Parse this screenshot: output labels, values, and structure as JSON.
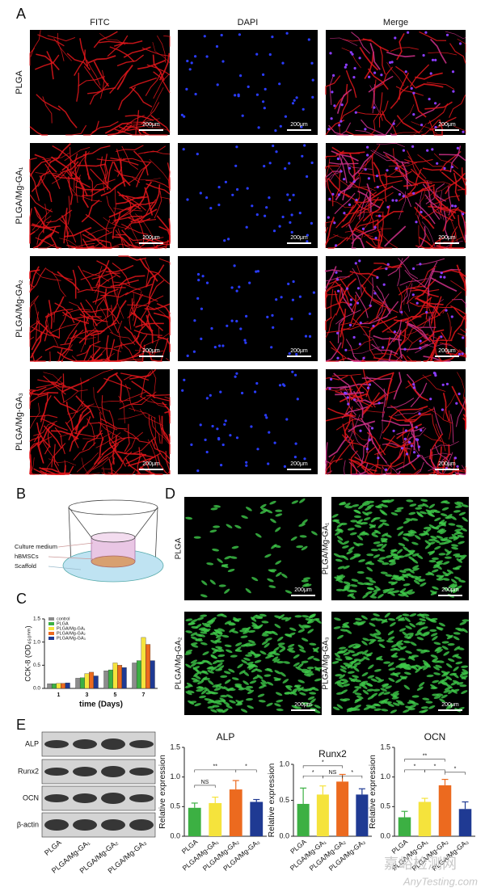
{
  "panel_labels": [
    "A",
    "B",
    "C",
    "D",
    "E"
  ],
  "panel_a": {
    "columns": [
      "FITC",
      "DAPI",
      "Merge"
    ],
    "rows": [
      "PLGA",
      "PLGA/Mg-GA₁",
      "PLGA/Mg-GA₂",
      "PLGA/Mg-GA₃"
    ],
    "scale_bar": "200μm"
  },
  "panel_b": {
    "labels": [
      "Culture medium",
      "hBMSCs",
      "Scaffold"
    ]
  },
  "panel_d": {
    "rows": [
      "PLGA",
      "PLGA/Mg-GA₁",
      "PLGA/Mg-GA₂",
      "PLGA/Mg-GA₃"
    ],
    "scale_bar": "200μm"
  },
  "panel_e": {
    "bands": [
      "ALP",
      "Runx2",
      "OCN",
      "β-actin"
    ],
    "lanes": [
      "PLGA",
      "PLGA/Mg-GA₁",
      "PLGA/Mg-GA₂",
      "PLGA/Mg-GA₃"
    ]
  },
  "chart_data": [
    {
      "type": "grouped-bar",
      "ylabel": "CCK-8 (OD₄₅₀ₙₘ)",
      "xlabel": "time (Days)",
      "categories": [
        "1",
        "3",
        "5",
        "7"
      ],
      "series": [
        {
          "name": "control",
          "color": "#8c8c8c",
          "values": [
            0.1,
            0.22,
            0.38,
            0.55
          ]
        },
        {
          "name": "PLGA",
          "color": "#3cb043",
          "values": [
            0.1,
            0.23,
            0.4,
            0.6
          ]
        },
        {
          "name": "PLGA/Mg-GA₁",
          "color": "#f5e33c",
          "values": [
            0.11,
            0.32,
            0.55,
            1.1
          ]
        },
        {
          "name": "PLGA/Mg-GA₂",
          "color": "#ec6a1f",
          "values": [
            0.11,
            0.35,
            0.5,
            0.95
          ]
        },
        {
          "name": "PLGA/Mg-GA₃",
          "color": "#1f3a93",
          "values": [
            0.12,
            0.27,
            0.45,
            0.6
          ]
        }
      ],
      "ylim": [
        0,
        1.5
      ],
      "yticks": [
        {
          "value": 0,
          "label": "0.0"
        },
        {
          "value": 0.5,
          "label": "0.5"
        },
        {
          "value": 1,
          "label": "1.0"
        },
        {
          "value": 1.5,
          "label": "1.5"
        }
      ]
    },
    {
      "type": "bar",
      "title": "ALP",
      "ylabel": "Relative expression",
      "categories": [
        "PLGA",
        "PLGA/Mg-GA₁",
        "PLGA/Mg-GA₂",
        "PLGA/Mg-GA₃"
      ],
      "values": [
        0.48,
        0.56,
        0.79,
        0.58
      ],
      "errors": [
        0.08,
        0.1,
        0.15,
        0.04
      ],
      "colors": [
        "#3cb043",
        "#f5e33c",
        "#ec6a1f",
        "#1f3a93"
      ],
      "ylim": [
        0,
        1.5
      ],
      "yticks": [
        {
          "value": 0,
          "label": "0.0"
        },
        {
          "value": 0.5,
          "label": "0.5"
        },
        {
          "value": 1,
          "label": "1.0"
        },
        {
          "value": 1.5,
          "label": "1.5"
        }
      ],
      "annotations": [
        "**",
        "*",
        "NS"
      ]
    },
    {
      "type": "bar",
      "title": "Runx2",
      "ylabel": "Relative expression",
      "categories": [
        "PLGA",
        "PLGA/Mg-GA₁",
        "PLGA/Mg-GA₂",
        "PLGA/Mg-GA₃"
      ],
      "values": [
        0.45,
        0.58,
        0.76,
        0.58
      ],
      "errors": [
        0.22,
        0.12,
        0.1,
        0.08
      ],
      "colors": [
        "#3cb043",
        "#f5e33c",
        "#ec6a1f",
        "#1f3a93"
      ],
      "ylim": [
        0,
        1
      ],
      "yticks": [
        {
          "value": 0,
          "label": "0.0"
        },
        {
          "value": 0.5,
          "label": "0.5"
        },
        {
          "value": 1,
          "label": "1.0"
        }
      ],
      "annotations": [
        "*",
        "*",
        "NS",
        "*"
      ]
    },
    {
      "type": "bar",
      "title": "OCN",
      "ylabel": "Relative expression",
      "categories": [
        "PLGA",
        "PLGA/Mg-GA₁",
        "PLGA/Mg-GA₂",
        "PLGA/Mg-GA₃"
      ],
      "values": [
        0.32,
        0.58,
        0.86,
        0.46
      ],
      "errors": [
        0.1,
        0.06,
        0.1,
        0.12
      ],
      "colors": [
        "#3cb043",
        "#f5e33c",
        "#ec6a1f",
        "#1f3a93"
      ],
      "ylim": [
        0,
        1.5
      ],
      "yticks": [
        {
          "value": 0,
          "label": "0.0"
        },
        {
          "value": 0.5,
          "label": "0.5"
        },
        {
          "value": 1,
          "label": "1.0"
        },
        {
          "value": 1.5,
          "label": "1.5"
        }
      ],
      "annotations": [
        "**",
        "*",
        "*",
        "*"
      ]
    }
  ],
  "watermark": [
    "嘉峪检测网",
    "AnyTesting.com"
  ]
}
